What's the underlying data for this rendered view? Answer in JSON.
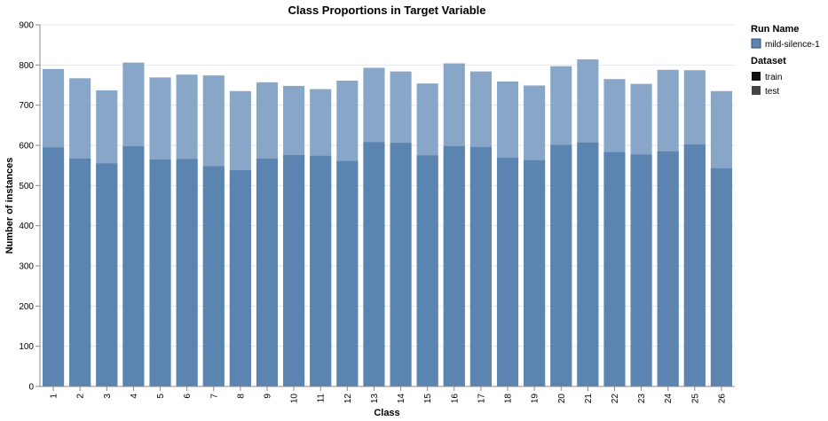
{
  "chart_data": {
    "type": "bar",
    "stacked": "overlay",
    "title": "Class Proportions in Target Variable",
    "xlabel": "Class",
    "ylabel": "Number of instances",
    "ylim": [
      0,
      900
    ],
    "yticks": [
      "0",
      "100",
      "200",
      "300",
      "400",
      "500",
      "600",
      "700",
      "800",
      "900"
    ],
    "grid": true,
    "legend_position": "right",
    "categories": [
      "1",
      "2",
      "3",
      "4",
      "5",
      "6",
      "7",
      "8",
      "9",
      "10",
      "11",
      "12",
      "13",
      "14",
      "15",
      "16",
      "17",
      "18",
      "19",
      "20",
      "21",
      "22",
      "23",
      "24",
      "25",
      "26"
    ],
    "series": [
      {
        "name": "train",
        "color": "#5b84b1",
        "values": [
          595,
          567,
          555,
          598,
          565,
          566,
          548,
          538,
          567,
          576,
          574,
          561,
          608,
          606,
          575,
          598,
          596,
          569,
          563,
          601,
          607,
          583,
          577,
          585,
          602,
          543
        ]
      },
      {
        "name": "test",
        "color": "#88a6c8",
        "values": [
          790,
          767,
          737,
          806,
          769,
          776,
          774,
          735,
          757,
          748,
          740,
          761,
          793,
          784,
          754,
          804,
          784,
          759,
          749,
          797,
          814,
          765,
          753,
          788,
          787,
          735
        ]
      }
    ],
    "legend": {
      "run_title": "Run Name",
      "run_items": [
        {
          "label": "mild-silence-1",
          "color": "#5b84b1"
        }
      ],
      "dataset_title": "Dataset",
      "dataset_items": [
        {
          "label": "train",
          "color": "#111111"
        },
        {
          "label": "test",
          "color": "#444444"
        }
      ]
    }
  }
}
